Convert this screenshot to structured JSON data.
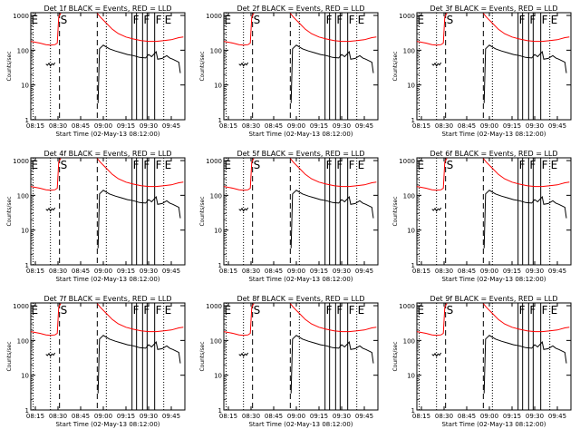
{
  "chart_data": {
    "type": "line",
    "x_axis": {
      "label": "Start Time (02-May-13 08:12:00)",
      "ticks": [
        "08:15",
        "08:30",
        "08:45",
        "09:00",
        "09:15",
        "09:30",
        "09:45"
      ],
      "tick_minutes": [
        15,
        30,
        45,
        60,
        75,
        90,
        105
      ],
      "range_minutes": [
        12,
        114
      ]
    },
    "y_axis": {
      "label": "Counts/sec",
      "scale": "log",
      "ticks": [
        "1",
        "10",
        "100",
        "1000"
      ],
      "tick_values": [
        1,
        10,
        100,
        1000
      ],
      "range": [
        1,
        1200
      ]
    },
    "legend": "none",
    "grid": false,
    "colors": {
      "events": "#000000",
      "lld": "#ff0000",
      "axes": "#000000"
    },
    "marker_labels": [
      "E",
      "S",
      "F",
      "F",
      "F",
      "E"
    ],
    "panels": [
      {
        "title": "Det 1f BLACK = Events, RED = LLD"
      },
      {
        "title": "Det 2f BLACK = Events, RED = LLD"
      },
      {
        "title": "Det 3f BLACK = Events, RED = LLD"
      },
      {
        "title": "Det 4f BLACK = Events, RED = LLD"
      },
      {
        "title": "Det 5f BLACK = Events, RED = LLD"
      },
      {
        "title": "Det 6f BLACK = Events, RED = LLD"
      },
      {
        "title": "Det 7f BLACK = Events, RED = LLD"
      },
      {
        "title": "Det 8f BLACK = Events, RED = LLD"
      },
      {
        "title": "Det 9f BLACK = Events, RED = LLD"
      }
    ],
    "markers": [
      {
        "label": "E",
        "minute": 13.5,
        "style": "dotted"
      },
      {
        "label": "",
        "minute": 25,
        "style": "dotted"
      },
      {
        "label": "S",
        "minute": 31,
        "style": "dashed"
      },
      {
        "label": "",
        "minute": 56,
        "style": "dashed"
      },
      {
        "label": "",
        "minute": 62,
        "style": "dotted"
      },
      {
        "label": "F",
        "minute": 79,
        "style": "solid"
      },
      {
        "label": "",
        "minute": 82,
        "style": "solid"
      },
      {
        "label": "F",
        "minute": 86,
        "style": "solid"
      },
      {
        "label": "",
        "minute": 89,
        "style": "solid"
      },
      {
        "label": "F",
        "minute": 94,
        "style": "solid"
      },
      {
        "label": "E",
        "minute": 100,
        "style": "dotted"
      }
    ],
    "series": [
      {
        "name": "LLD",
        "color": "#ff0000",
        "segments": [
          [
            [
              12,
              180
            ],
            [
              18,
              160
            ],
            [
              22,
              145
            ],
            [
              25,
              140
            ],
            [
              28,
              145
            ],
            [
              29.5,
              160
            ],
            [
              30.5,
              900
            ],
            [
              31.5,
              1100
            ],
            [
              32,
              1150
            ]
          ],
          [
            [
              56,
              1150
            ],
            [
              58,
              900
            ],
            [
              62,
              600
            ],
            [
              66,
              400
            ],
            [
              70,
              300
            ],
            [
              75,
              240
            ],
            [
              80,
              210
            ],
            [
              85,
              190
            ],
            [
              90,
              180
            ],
            [
              95,
              180
            ],
            [
              100,
              190
            ],
            [
              105,
              200
            ],
            [
              110,
              230
            ],
            [
              113,
              240
            ]
          ]
        ]
      },
      {
        "name": "Events",
        "color": "#000000",
        "segments": [
          [
            [
              22,
              40
            ],
            [
              23,
              37
            ],
            [
              24,
              42
            ],
            [
              25,
              35
            ],
            [
              26,
              41
            ],
            [
              27,
              38
            ],
            [
              28,
              44
            ]
          ],
          [
            [
              56.5,
              3
            ],
            [
              57.5,
              110
            ],
            [
              60,
              140
            ],
            [
              64,
              110
            ],
            [
              68,
              95
            ],
            [
              72,
              85
            ],
            [
              76,
              75
            ],
            [
              80,
              70
            ],
            [
              84,
              62
            ],
            [
              88,
              60
            ],
            [
              90,
              75
            ],
            [
              92,
              65
            ],
            [
              95,
              90
            ],
            [
              96,
              55
            ],
            [
              99,
              58
            ],
            [
              102,
              70
            ],
            [
              104,
              60
            ],
            [
              106,
              55
            ],
            [
              108,
              50
            ],
            [
              110,
              45
            ],
            [
              111,
              22
            ]
          ]
        ]
      }
    ]
  }
}
